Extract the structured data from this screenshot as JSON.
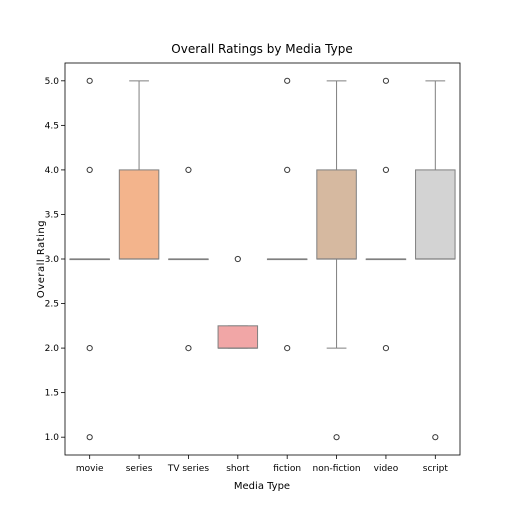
{
  "chart_data": {
    "type": "box",
    "title": "Overall Ratings by Media Type",
    "xlabel": "Media Type",
    "ylabel": "Overall Rating",
    "ylim": [
      0.8,
      5.2
    ],
    "yticks": [
      1.0,
      1.5,
      2.0,
      2.5,
      3.0,
      3.5,
      4.0,
      4.5,
      5.0
    ],
    "grid": false,
    "categories": [
      "movie",
      "series",
      "TV series",
      "short",
      "fiction",
      "non-fiction",
      "video",
      "script"
    ],
    "boxes": [
      {
        "category": "movie",
        "q1": 3.0,
        "median": 3.0,
        "q3": 3.0,
        "whisker_low": 3.0,
        "whisker_high": 3.0,
        "outliers": [
          1.0,
          2.0,
          4.0,
          5.0
        ],
        "color": "#8ec1e6"
      },
      {
        "category": "series",
        "q1": 3.0,
        "median": 3.0,
        "q3": 4.0,
        "whisker_low": 3.0,
        "whisker_high": 5.0,
        "outliers": [],
        "color": "#f3b48c"
      },
      {
        "category": "TV series",
        "q1": 3.0,
        "median": 3.0,
        "q3": 3.0,
        "whisker_low": 3.0,
        "whisker_high": 3.0,
        "outliers": [
          2.0,
          4.0
        ],
        "color": "#9fd3a0"
      },
      {
        "category": "short",
        "q1": 2.0,
        "median": 2.0,
        "q3": 2.25,
        "whisker_low": 2.0,
        "whisker_high": 2.25,
        "outliers": [
          3.0
        ],
        "color": "#f1a6a6"
      },
      {
        "category": "fiction",
        "q1": 3.0,
        "median": 3.0,
        "q3": 3.0,
        "whisker_low": 3.0,
        "whisker_high": 3.0,
        "outliers": [
          2.0,
          4.0,
          5.0
        ],
        "color": "#c7b4e0"
      },
      {
        "category": "non-fiction",
        "q1": 3.0,
        "median": 3.0,
        "q3": 4.0,
        "whisker_low": 2.0,
        "whisker_high": 5.0,
        "outliers": [
          1.0
        ],
        "color": "#d6b9a0"
      },
      {
        "category": "video",
        "q1": 3.0,
        "median": 3.0,
        "q3": 3.0,
        "whisker_low": 3.0,
        "whisker_high": 3.0,
        "outliers": [
          2.0,
          4.0,
          5.0
        ],
        "color": "#f0bfe0"
      },
      {
        "category": "script",
        "q1": 3.0,
        "median": 3.0,
        "q3": 4.0,
        "whisker_low": 3.0,
        "whisker_high": 5.0,
        "outliers": [
          1.0
        ],
        "color": "#d3d3d3"
      }
    ]
  }
}
